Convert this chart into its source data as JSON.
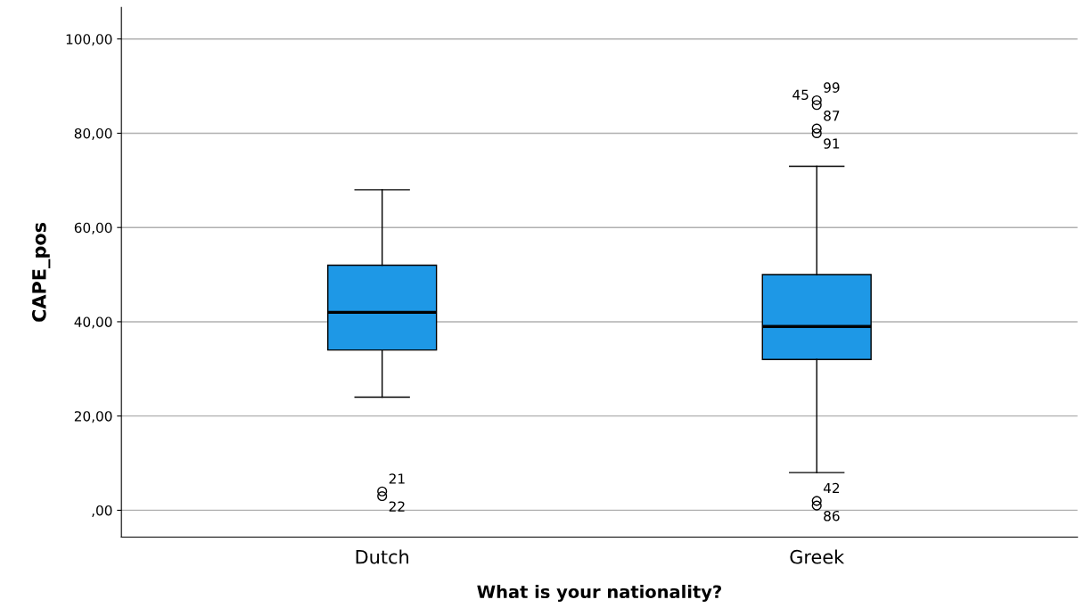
{
  "chart_data": {
    "type": "box",
    "xlabel": "What is your nationality?",
    "ylabel": "CAPE_pos",
    "categories": [
      "Dutch",
      "Greek"
    ],
    "color": "#1e98e6",
    "boxes": [
      {
        "low": 24,
        "q1": 34,
        "median": 42,
        "q3": 52,
        "high": 68,
        "outliers": [
          4,
          3
        ]
      },
      {
        "low": 8,
        "q1": 32,
        "median": 39,
        "q3": 50,
        "high": 73,
        "outliers": [
          87,
          86,
          81,
          80,
          2,
          1
        ]
      }
    ],
    "ylim": [
      -5.7,
      106.7
    ],
    "yticks": [
      {
        "value": 0,
        "label": ",00"
      },
      {
        "value": 20,
        "label": "20,00"
      },
      {
        "value": 40,
        "label": "40,00"
      },
      {
        "value": 60,
        "label": "60,00"
      },
      {
        "value": 80,
        "label": "80,00"
      },
      {
        "value": 100,
        "label": "100,00"
      }
    ],
    "grid": "y",
    "annotations": [
      "21",
      "22",
      "99",
      "45",
      "87",
      "91",
      "42",
      "86"
    ]
  }
}
